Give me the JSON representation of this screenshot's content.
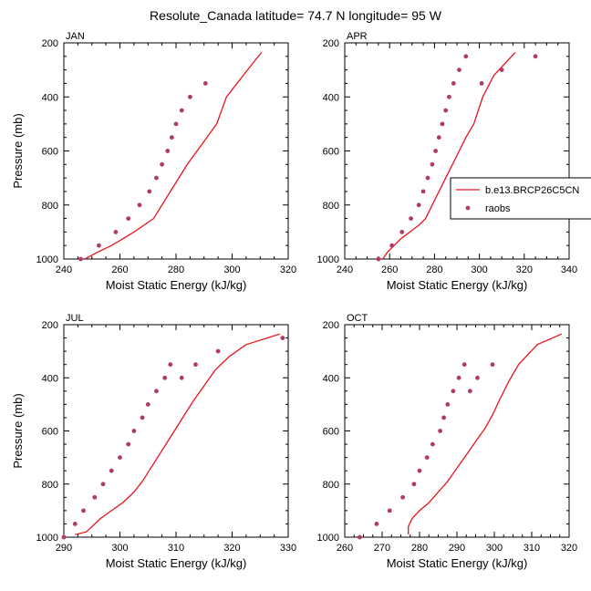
{
  "title": "Resolute_Canada  latitude= 74.7 N longitude= 95 W",
  "colors": {
    "model": "#e8141c",
    "obs": "#b03a64",
    "axis": "#000000"
  },
  "chart_data": [
    {
      "type": "line",
      "label": "JAN",
      "xlabel": "Moist Static Energy (kJ/kg)",
      "ylabel": "Pressure (mb)",
      "xlim": [
        240,
        320
      ],
      "ylim": [
        1000,
        200
      ],
      "xticks": [
        240,
        260,
        280,
        300,
        320
      ],
      "yticks": [
        200,
        400,
        600,
        800,
        1000
      ],
      "y_reversed": true,
      "show_ylabel": true,
      "series": [
        {
          "kind": "line",
          "x": [
            247.5,
            252,
            257,
            261,
            265,
            268.5,
            272,
            275,
            278,
            281,
            284,
            287.5,
            291,
            294.5,
            298,
            304,
            310.5
          ],
          "y": [
            1000,
            975,
            950,
            925,
            900,
            875,
            850,
            800,
            750,
            700,
            650,
            600,
            550,
            500,
            400,
            320,
            235
          ]
        },
        {
          "kind": "scatter",
          "x": [
            246,
            252.5,
            258.5,
            263,
            267,
            270.5,
            273,
            275,
            277,
            278.5,
            280,
            282,
            285,
            290.5
          ],
          "y": [
            1000,
            950,
            900,
            850,
            800,
            750,
            700,
            650,
            600,
            550,
            500,
            450,
            400,
            350
          ]
        }
      ]
    },
    {
      "type": "line",
      "label": "APR",
      "xlabel": "Moist Static Energy (kJ/kg)",
      "ylabel": "Pressure (mb)",
      "xlim": [
        240,
        340
      ],
      "ylim": [
        1000,
        200
      ],
      "xticks": [
        240,
        260,
        280,
        300,
        320,
        340
      ],
      "yticks": [
        200,
        400,
        600,
        800,
        1000
      ],
      "y_reversed": true,
      "show_ylabel": false,
      "legend": {
        "position": "right",
        "entries": [
          "b.e13.BRCP26C5CN",
          "raobs"
        ]
      },
      "series": [
        {
          "kind": "line",
          "name": "b.e13.BRCP26C5CN",
          "x": [
            257,
            259,
            262,
            265,
            269,
            273,
            276,
            279,
            282,
            285,
            288,
            291,
            294,
            297.5,
            301.5,
            306.5,
            316
          ],
          "y": [
            1000,
            975,
            950,
            925,
            900,
            875,
            850,
            800,
            750,
            700,
            650,
            600,
            550,
            500,
            400,
            320,
            235
          ]
        },
        {
          "kind": "scatter",
          "name": "raobs",
          "x": [
            255,
            261,
            265.5,
            269.5,
            273,
            275,
            277,
            279,
            280.5,
            282,
            283.5,
            285,
            286.5,
            288.5,
            291,
            294,
            301,
            310,
            325
          ],
          "y": [
            1000,
            950,
            900,
            850,
            800,
            750,
            700,
            650,
            600,
            550,
            500,
            450,
            400,
            350,
            300,
            250,
            350,
            300,
            250
          ]
        }
      ]
    },
    {
      "type": "line",
      "label": "JUL",
      "xlabel": "Moist Static Energy (kJ/kg)",
      "ylabel": "Pressure (mb)",
      "xlim": [
        290,
        330
      ],
      "ylim": [
        1000,
        200
      ],
      "xticks": [
        290,
        300,
        310,
        320,
        330
      ],
      "yticks": [
        200,
        400,
        600,
        800,
        1000
      ],
      "y_reversed": true,
      "show_ylabel": true,
      "series": [
        {
          "kind": "line",
          "x": [
            292,
            294,
            295,
            296.5,
            298.5,
            300.5,
            302.5,
            304,
            305.5,
            307,
            308.5,
            310,
            311.5,
            313,
            315,
            317,
            319.5,
            322.5,
            328.5
          ],
          "y": [
            990,
            980,
            960,
            930,
            900,
            870,
            830,
            790,
            740,
            690,
            640,
            590,
            540,
            490,
            430,
            370,
            320,
            275,
            235
          ]
        },
        {
          "kind": "scatter",
          "x": [
            290,
            292,
            293.5,
            295.5,
            297,
            298.5,
            300,
            301.5,
            302.5,
            304,
            305,
            306.5,
            308,
            309,
            311,
            313.5,
            317.5,
            329
          ],
          "y": [
            1000,
            950,
            900,
            850,
            800,
            750,
            700,
            650,
            600,
            550,
            500,
            450,
            400,
            350,
            400,
            350,
            300,
            250
          ]
        }
      ]
    },
    {
      "type": "line",
      "label": "OCT",
      "xlabel": "Moist Static Energy (kJ/kg)",
      "ylabel": "Pressure (mb)",
      "xlim": [
        260,
        320
      ],
      "ylim": [
        1000,
        200
      ],
      "xticks": [
        260,
        270,
        280,
        290,
        300,
        310,
        320
      ],
      "yticks": [
        200,
        400,
        600,
        800,
        1000
      ],
      "y_reversed": true,
      "show_ylabel": false,
      "series": [
        {
          "kind": "line",
          "x": [
            277,
            277,
            278,
            280,
            282.5,
            285,
            287.5,
            290,
            292.5,
            295,
            297.5,
            299.5,
            301.5,
            304,
            306.5,
            311.5,
            318
          ],
          "y": [
            990,
            960,
            930,
            900,
            870,
            830,
            790,
            740,
            690,
            640,
            590,
            540,
            480,
            410,
            350,
            275,
            235
          ]
        },
        {
          "kind": "scatter",
          "x": [
            264,
            268.5,
            272,
            275.5,
            278.5,
            280,
            282,
            283.5,
            285.5,
            286.5,
            287.5,
            289,
            290.5,
            292,
            293.5,
            295.5,
            299.5
          ],
          "y": [
            1000,
            950,
            900,
            850,
            800,
            750,
            700,
            650,
            600,
            550,
            500,
            450,
            400,
            350,
            450,
            400,
            350
          ]
        }
      ]
    }
  ]
}
